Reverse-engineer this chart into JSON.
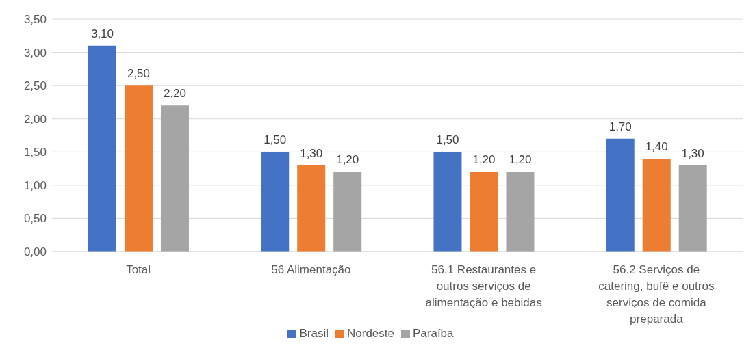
{
  "chart_data": {
    "type": "bar",
    "categories": [
      "Total",
      "56 Alimentação",
      "56.1 Restaurantes e outros serviços de alimentação e bebidas",
      "56.2 Serviços de catering, bufê e outros serviços de comida preparada"
    ],
    "series": [
      {
        "name": "Brasil",
        "color": "#4472c4",
        "values": [
          3.1,
          1.5,
          1.5,
          1.7
        ],
        "value_labels": [
          "3,10",
          "1,50",
          "1,50",
          "1,70"
        ]
      },
      {
        "name": "Nordeste",
        "color": "#ed7d31",
        "values": [
          2.5,
          1.3,
          1.2,
          1.4
        ],
        "value_labels": [
          "2,50",
          "1,30",
          "1,20",
          "1,40"
        ]
      },
      {
        "name": "Paraíba",
        "color": "#a5a5a5",
        "values": [
          2.2,
          1.2,
          1.2,
          1.3
        ],
        "value_labels": [
          "2,20",
          "1,20",
          "1,20",
          "1,30"
        ]
      }
    ],
    "ylim": [
      0,
      3.5
    ],
    "yticks": [
      {
        "value": 0,
        "label": "0,00"
      },
      {
        "value": 0.5,
        "label": "0,50"
      },
      {
        "value": 1,
        "label": "1,00"
      },
      {
        "value": 1.5,
        "label": "1,50"
      },
      {
        "value": 2,
        "label": "2,00"
      },
      {
        "value": 2.5,
        "label": "2,50"
      },
      {
        "value": 3,
        "label": "3,00"
      },
      {
        "value": 3.5,
        "label": "3,50"
      }
    ],
    "grid": "y",
    "legend": "bottom"
  }
}
